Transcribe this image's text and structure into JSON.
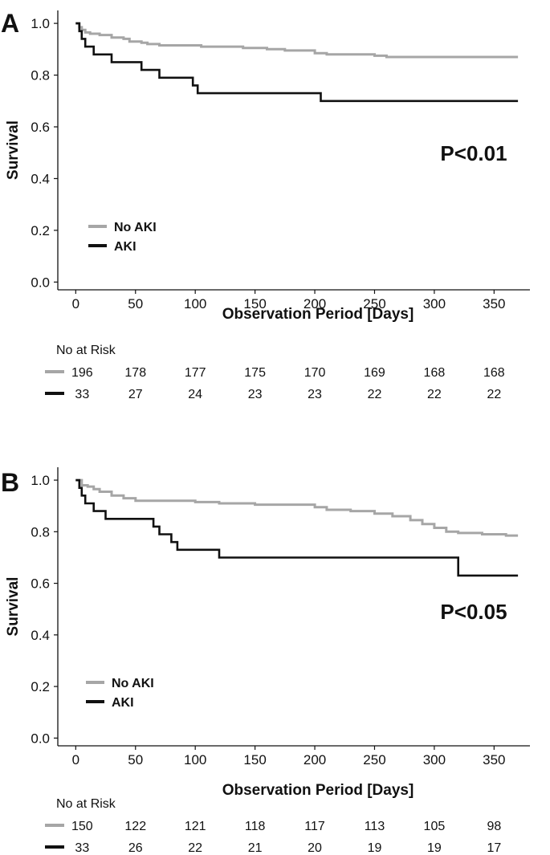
{
  "chart_data": [
    {
      "type": "line",
      "panel_label": "A",
      "xlabel": "Observation Period [Days]",
      "ylabel": "Survival",
      "xlim": [
        -15,
        380
      ],
      "ylim": [
        -0.03,
        1.05
      ],
      "x_ticks": [
        0,
        50,
        100,
        150,
        200,
        250,
        300,
        350
      ],
      "y_ticks": [
        0.0,
        0.2,
        0.4,
        0.6,
        0.8,
        1.0
      ],
      "y_tick_labels": [
        "0.0",
        "0.2",
        "0.4",
        "0.6",
        "0.8",
        "1.0"
      ],
      "p_value": "P<0.01",
      "legend_position": "lower-left",
      "series": [
        {
          "name": "No AKI",
          "color": "#a6a6a6",
          "x": [
            0,
            3,
            5,
            8,
            12,
            20,
            30,
            40,
            45,
            55,
            60,
            70,
            90,
            105,
            140,
            160,
            175,
            200,
            210,
            250,
            260,
            370
          ],
          "y": [
            1.0,
            0.985,
            0.975,
            0.965,
            0.96,
            0.955,
            0.945,
            0.94,
            0.93,
            0.925,
            0.92,
            0.915,
            0.915,
            0.91,
            0.905,
            0.9,
            0.895,
            0.885,
            0.88,
            0.875,
            0.87,
            0.87
          ]
        },
        {
          "name": "AKI",
          "color": "#111111",
          "x": [
            0,
            3,
            5,
            8,
            15,
            30,
            55,
            70,
            98,
            102,
            205,
            370
          ],
          "y": [
            1.0,
            0.97,
            0.94,
            0.91,
            0.88,
            0.85,
            0.82,
            0.79,
            0.76,
            0.73,
            0.7,
            0.7
          ]
        }
      ],
      "at_risk_title": "No at Risk",
      "at_risk": [
        {
          "name": "No AKI",
          "values": [
            "196",
            "178",
            "177",
            "175",
            "170",
            "169",
            "168",
            "168"
          ]
        },
        {
          "name": "AKI",
          "values": [
            "33",
            "27",
            "24",
            "23",
            "23",
            "22",
            "22",
            "22"
          ]
        }
      ]
    },
    {
      "type": "line",
      "panel_label": "B",
      "xlabel": "Observation Period [Days]",
      "ylabel": "Survival",
      "xlim": [
        -15,
        380
      ],
      "ylim": [
        -0.03,
        1.05
      ],
      "x_ticks": [
        0,
        50,
        100,
        150,
        200,
        250,
        300,
        350
      ],
      "y_ticks": [
        0.0,
        0.2,
        0.4,
        0.6,
        0.8,
        1.0
      ],
      "y_tick_labels": [
        "0.0",
        "0.2",
        "0.4",
        "0.6",
        "0.8",
        "1.0"
      ],
      "p_value": "P<0.05",
      "legend_position": "lower-left",
      "series": [
        {
          "name": "No AKI",
          "color": "#a6a6a6",
          "x": [
            0,
            5,
            10,
            15,
            20,
            30,
            40,
            50,
            100,
            120,
            150,
            200,
            210,
            230,
            250,
            265,
            280,
            290,
            300,
            310,
            320,
            340,
            360,
            370
          ],
          "y": [
            1.0,
            0.98,
            0.975,
            0.965,
            0.955,
            0.94,
            0.93,
            0.92,
            0.915,
            0.91,
            0.905,
            0.895,
            0.885,
            0.88,
            0.87,
            0.86,
            0.845,
            0.83,
            0.815,
            0.8,
            0.795,
            0.79,
            0.785,
            0.785
          ]
        },
        {
          "name": "AKI",
          "color": "#111111",
          "x": [
            0,
            3,
            5,
            8,
            15,
            25,
            65,
            70,
            80,
            85,
            120,
            320,
            370
          ],
          "y": [
            1.0,
            0.97,
            0.94,
            0.91,
            0.88,
            0.85,
            0.82,
            0.79,
            0.76,
            0.73,
            0.7,
            0.63,
            0.63
          ]
        }
      ],
      "at_risk_title": "No at Risk",
      "at_risk": [
        {
          "name": "No AKI",
          "values": [
            "150",
            "122",
            "121",
            "118",
            "117",
            "113",
            "105",
            "98"
          ]
        },
        {
          "name": "AKI",
          "values": [
            "33",
            "26",
            "22",
            "21",
            "20",
            "19",
            "19",
            "17"
          ]
        }
      ]
    }
  ]
}
